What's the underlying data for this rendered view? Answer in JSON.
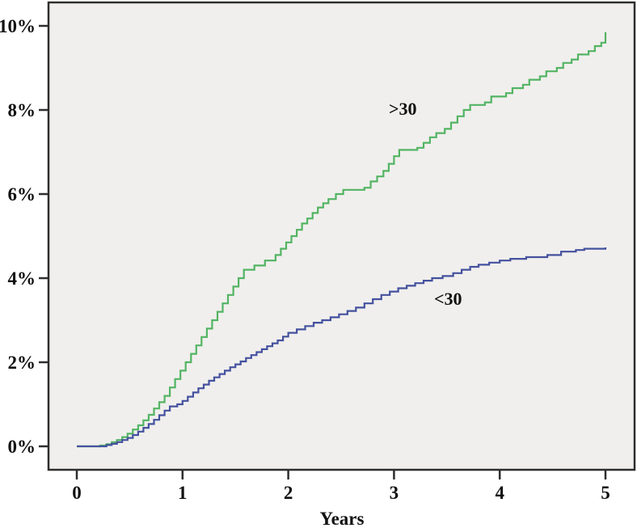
{
  "chart_data": {
    "type": "line",
    "subtype": "step",
    "title": "",
    "xlabel": "Years",
    "ylabel": "",
    "x_range": [
      0,
      5
    ],
    "y_range_percent": [
      0,
      10
    ],
    "grid": false,
    "legend_position": "inline-annotations",
    "plot_background_color": "#f0efed",
    "frame_color": "#2e2e2e",
    "x_ticks": [
      {
        "label": "0",
        "value": 0
      },
      {
        "label": "1",
        "value": 1
      },
      {
        "label": "2",
        "value": 2
      },
      {
        "label": "3",
        "value": 3
      },
      {
        "label": "4",
        "value": 4
      },
      {
        "label": "5",
        "value": 5
      }
    ],
    "y_ticks": [
      {
        "label": "0%",
        "value": 0
      },
      {
        "label": "2%",
        "value": 2
      },
      {
        "label": "4%",
        "value": 4
      },
      {
        "label": "6%",
        "value": 6
      },
      {
        "label": "8%",
        "value": 8
      },
      {
        "label": "10%",
        "value": 10
      }
    ],
    "series": [
      {
        "name": "over-30",
        "label": ">30",
        "color": "#53b463",
        "points": [
          [
            0,
            0
          ],
          [
            0.22,
            0.02
          ],
          [
            0.28,
            0.05
          ],
          [
            0.33,
            0.1
          ],
          [
            0.38,
            0.15
          ],
          [
            0.43,
            0.22
          ],
          [
            0.48,
            0.3
          ],
          [
            0.53,
            0.4
          ],
          [
            0.58,
            0.5
          ],
          [
            0.63,
            0.62
          ],
          [
            0.68,
            0.75
          ],
          [
            0.73,
            0.9
          ],
          [
            0.78,
            1.05
          ],
          [
            0.83,
            1.2
          ],
          [
            0.88,
            1.4
          ],
          [
            0.93,
            1.6
          ],
          [
            0.98,
            1.8
          ],
          [
            1.03,
            2.0
          ],
          [
            1.08,
            2.2
          ],
          [
            1.13,
            2.4
          ],
          [
            1.18,
            2.6
          ],
          [
            1.23,
            2.8
          ],
          [
            1.28,
            3.0
          ],
          [
            1.33,
            3.2
          ],
          [
            1.38,
            3.4
          ],
          [
            1.43,
            3.6
          ],
          [
            1.48,
            3.8
          ],
          [
            1.53,
            4.0
          ],
          [
            1.58,
            4.2
          ],
          [
            1.68,
            4.3
          ],
          [
            1.78,
            4.42
          ],
          [
            1.88,
            4.55
          ],
          [
            1.93,
            4.7
          ],
          [
            1.98,
            4.85
          ],
          [
            2.03,
            5.0
          ],
          [
            2.08,
            5.15
          ],
          [
            2.13,
            5.3
          ],
          [
            2.18,
            5.42
          ],
          [
            2.23,
            5.55
          ],
          [
            2.28,
            5.68
          ],
          [
            2.33,
            5.78
          ],
          [
            2.38,
            5.88
          ],
          [
            2.45,
            6.0
          ],
          [
            2.52,
            6.1
          ],
          [
            2.72,
            6.15
          ],
          [
            2.78,
            6.3
          ],
          [
            2.84,
            6.42
          ],
          [
            2.9,
            6.55
          ],
          [
            2.95,
            6.72
          ],
          [
            3.0,
            6.9
          ],
          [
            3.05,
            7.05
          ],
          [
            3.22,
            7.1
          ],
          [
            3.28,
            7.22
          ],
          [
            3.34,
            7.35
          ],
          [
            3.4,
            7.45
          ],
          [
            3.48,
            7.55
          ],
          [
            3.54,
            7.7
          ],
          [
            3.6,
            7.85
          ],
          [
            3.66,
            8.0
          ],
          [
            3.72,
            8.12
          ],
          [
            3.86,
            8.18
          ],
          [
            3.92,
            8.32
          ],
          [
            4.06,
            8.4
          ],
          [
            4.12,
            8.52
          ],
          [
            4.22,
            8.6
          ],
          [
            4.28,
            8.72
          ],
          [
            4.38,
            8.8
          ],
          [
            4.44,
            8.92
          ],
          [
            4.54,
            9.0
          ],
          [
            4.6,
            9.12
          ],
          [
            4.68,
            9.2
          ],
          [
            4.74,
            9.32
          ],
          [
            4.84,
            9.4
          ],
          [
            4.9,
            9.52
          ],
          [
            4.96,
            9.6
          ],
          [
            5.0,
            9.85
          ]
        ]
      },
      {
        "name": "under-30",
        "label": "<30",
        "color": "#44519e",
        "points": [
          [
            0,
            0
          ],
          [
            0.28,
            0.03
          ],
          [
            0.33,
            0.06
          ],
          [
            0.38,
            0.1
          ],
          [
            0.43,
            0.15
          ],
          [
            0.48,
            0.2
          ],
          [
            0.53,
            0.27
          ],
          [
            0.58,
            0.35
          ],
          [
            0.63,
            0.44
          ],
          [
            0.68,
            0.53
          ],
          [
            0.73,
            0.63
          ],
          [
            0.78,
            0.74
          ],
          [
            0.83,
            0.85
          ],
          [
            0.88,
            0.95
          ],
          [
            0.95,
            1.0
          ],
          [
            1.0,
            1.08
          ],
          [
            1.05,
            1.18
          ],
          [
            1.1,
            1.28
          ],
          [
            1.15,
            1.38
          ],
          [
            1.2,
            1.47
          ],
          [
            1.25,
            1.56
          ],
          [
            1.3,
            1.64
          ],
          [
            1.35,
            1.72
          ],
          [
            1.4,
            1.8
          ],
          [
            1.45,
            1.88
          ],
          [
            1.5,
            1.95
          ],
          [
            1.55,
            2.02
          ],
          [
            1.6,
            2.1
          ],
          [
            1.65,
            2.17
          ],
          [
            1.7,
            2.24
          ],
          [
            1.75,
            2.31
          ],
          [
            1.8,
            2.38
          ],
          [
            1.85,
            2.45
          ],
          [
            1.9,
            2.52
          ],
          [
            1.95,
            2.61
          ],
          [
            2.0,
            2.7
          ],
          [
            2.08,
            2.78
          ],
          [
            2.16,
            2.86
          ],
          [
            2.24,
            2.94
          ],
          [
            2.32,
            3.0
          ],
          [
            2.4,
            3.07
          ],
          [
            2.48,
            3.14
          ],
          [
            2.56,
            3.22
          ],
          [
            2.64,
            3.3
          ],
          [
            2.72,
            3.4
          ],
          [
            2.8,
            3.5
          ],
          [
            2.88,
            3.6
          ],
          [
            2.96,
            3.68
          ],
          [
            3.04,
            3.76
          ],
          [
            3.12,
            3.82
          ],
          [
            3.2,
            3.88
          ],
          [
            3.28,
            3.94
          ],
          [
            3.36,
            4.0
          ],
          [
            3.46,
            4.05
          ],
          [
            3.56,
            4.12
          ],
          [
            3.64,
            4.2
          ],
          [
            3.72,
            4.27
          ],
          [
            3.8,
            4.32
          ],
          [
            3.9,
            4.37
          ],
          [
            4.0,
            4.42
          ],
          [
            4.1,
            4.46
          ],
          [
            4.25,
            4.5
          ],
          [
            4.45,
            4.55
          ],
          [
            4.58,
            4.63
          ],
          [
            4.72,
            4.67
          ],
          [
            4.8,
            4.7
          ],
          [
            5.0,
            4.73
          ]
        ]
      }
    ],
    "annotations": [
      {
        "text": ">30",
        "series": "over-30"
      },
      {
        "text": "<30",
        "series": "under-30"
      }
    ]
  }
}
